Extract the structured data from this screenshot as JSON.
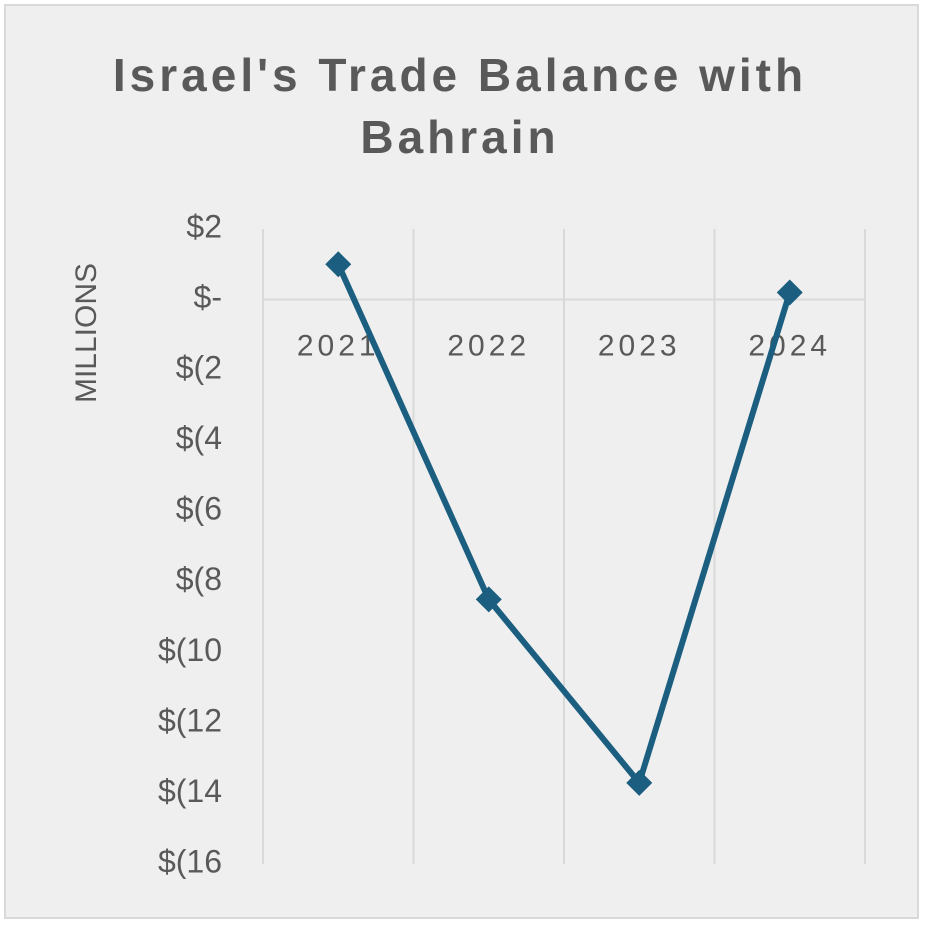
{
  "chart_data": {
    "type": "line",
    "title": "Israel's Trade Balance with Bahrain",
    "y_label": "MILLIONS",
    "categories": [
      "2021",
      "2022",
      "2023",
      "2024"
    ],
    "values": [
      1.0,
      -8.5,
      -13.7,
      0.2
    ],
    "color": "#1b5e80",
    "ylim": [
      -16,
      2
    ],
    "yticks": [
      {
        "value": 2,
        "label": "$2"
      },
      {
        "value": 0,
        "label": "$-"
      },
      {
        "value": -2,
        "label": "$(2"
      },
      {
        "value": -4,
        "label": "$(4"
      },
      {
        "value": -6,
        "label": "$(6"
      },
      {
        "value": -8,
        "label": "$(8"
      },
      {
        "value": -10,
        "label": "$(10"
      },
      {
        "value": -12,
        "label": "$(12"
      },
      {
        "value": -14,
        "label": "$(14"
      },
      {
        "value": -16,
        "label": "$(16"
      }
    ],
    "grid": true
  }
}
